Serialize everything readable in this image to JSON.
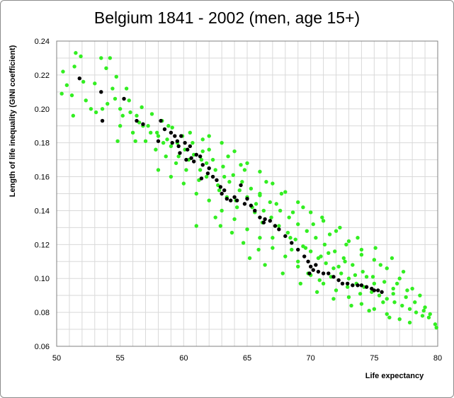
{
  "chart_data": {
    "type": "scatter",
    "title": "Belgium 1841 - 2002 (men, age 15+)",
    "xlabel": "Life expectancy",
    "ylabel": "Length of life  inequality (GINI coefficient)",
    "xlim": [
      50,
      80
    ],
    "ylim": [
      0.06,
      0.24
    ],
    "x_ticks": [
      "50",
      "55",
      "60",
      "65",
      "70",
      "75",
      "80"
    ],
    "y_ticks": [
      "0.06",
      "0.08",
      "0.10",
      "0.12",
      "0.14",
      "0.16",
      "0.18",
      "0.20",
      "0.22",
      "0.24"
    ],
    "grid": true,
    "legend": "none",
    "colors": {
      "simulated": "#33ee22",
      "observed": "#000000"
    },
    "series": [
      {
        "color": "#33ee22",
        "points": [
          [
            50.4,
            0.209
          ],
          [
            50.5,
            0.222
          ],
          [
            50.8,
            0.214
          ],
          [
            51.4,
            0.225
          ],
          [
            51.5,
            0.233
          ],
          [
            51.9,
            0.231
          ],
          [
            52.3,
            0.205
          ],
          [
            53.5,
            0.23
          ],
          [
            54.2,
            0.23
          ],
          [
            53.9,
            0.224
          ],
          [
            54.4,
            0.212
          ],
          [
            55.5,
            0.212
          ],
          [
            51.2,
            0.208
          ],
          [
            51.3,
            0.196
          ],
          [
            52.7,
            0.2
          ],
          [
            53.1,
            0.198
          ],
          [
            53.6,
            0.2
          ],
          [
            54.0,
            0.203
          ],
          [
            54.6,
            0.206
          ],
          [
            55.0,
            0.2
          ],
          [
            55.2,
            0.196
          ],
          [
            55.8,
            0.198
          ],
          [
            56.3,
            0.196
          ],
          [
            56.8,
            0.19
          ],
          [
            57.4,
            0.186
          ],
          [
            58.0,
            0.184
          ],
          [
            58.4,
            0.18
          ],
          [
            59.0,
            0.178
          ],
          [
            59.5,
            0.18
          ],
          [
            60.1,
            0.176
          ],
          [
            60.8,
            0.173
          ],
          [
            61.4,
            0.17
          ],
          [
            61.8,
            0.168
          ],
          [
            62.5,
            0.164
          ],
          [
            63.2,
            0.16
          ],
          [
            63.6,
            0.157
          ],
          [
            64.4,
            0.152
          ],
          [
            65.0,
            0.148
          ],
          [
            65.7,
            0.144
          ],
          [
            66.3,
            0.14
          ],
          [
            66.9,
            0.136
          ],
          [
            67.5,
            0.131
          ],
          [
            68.2,
            0.127
          ],
          [
            68.8,
            0.123
          ],
          [
            69.4,
            0.119
          ],
          [
            70.0,
            0.116
          ],
          [
            70.6,
            0.112
          ],
          [
            71.2,
            0.109
          ],
          [
            71.8,
            0.106
          ],
          [
            72.4,
            0.103
          ],
          [
            73.0,
            0.1
          ],
          [
            73.6,
            0.097
          ],
          [
            74.2,
            0.095
          ],
          [
            74.8,
            0.092
          ],
          [
            75.4,
            0.09
          ],
          [
            76.0,
            0.088
          ],
          [
            76.6,
            0.086
          ],
          [
            77.2,
            0.084
          ],
          [
            77.8,
            0.082
          ],
          [
            78.3,
            0.08
          ],
          [
            78.8,
            0.078
          ],
          [
            79.3,
            0.077
          ],
          [
            79.8,
            0.073
          ],
          [
            79.9,
            0.071
          ],
          [
            78.9,
            0.081
          ],
          [
            77.5,
            0.089
          ],
          [
            76.5,
            0.094
          ],
          [
            75.8,
            0.098
          ],
          [
            74.9,
            0.101
          ],
          [
            74.1,
            0.104
          ],
          [
            73.3,
            0.108
          ],
          [
            72.6,
            0.112
          ],
          [
            71.9,
            0.116
          ],
          [
            71.1,
            0.12
          ],
          [
            70.4,
            0.124
          ],
          [
            69.7,
            0.128
          ],
          [
            69.0,
            0.132
          ],
          [
            68.3,
            0.136
          ],
          [
            67.6,
            0.14
          ],
          [
            66.8,
            0.145
          ],
          [
            66.0,
            0.149
          ],
          [
            65.3,
            0.153
          ],
          [
            64.6,
            0.157
          ],
          [
            63.9,
            0.161
          ],
          [
            63.1,
            0.166
          ],
          [
            62.3,
            0.17
          ],
          [
            61.5,
            0.175
          ],
          [
            60.7,
            0.18
          ],
          [
            59.9,
            0.184
          ],
          [
            59.1,
            0.189
          ],
          [
            58.3,
            0.193
          ],
          [
            57.5,
            0.197
          ],
          [
            56.7,
            0.201
          ],
          [
            62.0,
            0.184
          ],
          [
            63.0,
            0.18
          ],
          [
            64.0,
            0.175
          ],
          [
            65.0,
            0.168
          ],
          [
            66.0,
            0.163
          ],
          [
            67.0,
            0.156
          ],
          [
            68.0,
            0.151
          ],
          [
            69.0,
            0.145
          ],
          [
            70.0,
            0.139
          ],
          [
            71.0,
            0.134
          ],
          [
            72.0,
            0.128
          ],
          [
            73.0,
            0.122
          ],
          [
            74.0,
            0.117
          ],
          [
            75.0,
            0.111
          ],
          [
            76.0,
            0.106
          ],
          [
            58.0,
            0.164
          ],
          [
            59.0,
            0.16
          ],
          [
            60.0,
            0.156
          ],
          [
            61.0,
            0.15
          ],
          [
            62.0,
            0.146
          ],
          [
            63.0,
            0.14
          ],
          [
            64.0,
            0.135
          ],
          [
            65.0,
            0.129
          ],
          [
            66.0,
            0.124
          ],
          [
            67.0,
            0.118
          ],
          [
            68.0,
            0.113
          ],
          [
            69.0,
            0.107
          ],
          [
            70.0,
            0.102
          ],
          [
            71.0,
            0.097
          ],
          [
            72.0,
            0.093
          ],
          [
            73.0,
            0.089
          ],
          [
            74.0,
            0.085
          ],
          [
            75.0,
            0.082
          ],
          [
            76.0,
            0.079
          ],
          [
            77.0,
            0.076
          ],
          [
            61.0,
            0.131
          ],
          [
            62.5,
            0.136
          ],
          [
            65.2,
            0.112
          ],
          [
            66.4,
            0.108
          ],
          [
            67.8,
            0.103
          ],
          [
            69.2,
            0.097
          ],
          [
            70.5,
            0.092
          ],
          [
            71.8,
            0.088
          ],
          [
            73.2,
            0.084
          ],
          [
            74.6,
            0.081
          ],
          [
            76.2,
            0.077
          ],
          [
            77.8,
            0.074
          ],
          [
            62.0,
            0.176
          ],
          [
            64.5,
            0.167
          ],
          [
            66.0,
            0.15
          ],
          [
            67.3,
            0.144
          ],
          [
            68.6,
            0.139
          ],
          [
            70.2,
            0.132
          ],
          [
            71.5,
            0.126
          ],
          [
            72.8,
            0.12
          ],
          [
            74.0,
            0.114
          ],
          [
            75.5,
            0.108
          ],
          [
            77.0,
            0.1
          ],
          [
            78.0,
            0.094
          ],
          [
            56.0,
            0.186
          ],
          [
            57.0,
            0.181
          ],
          [
            57.8,
            0.176
          ],
          [
            58.6,
            0.172
          ],
          [
            59.4,
            0.168
          ],
          [
            60.2,
            0.164
          ],
          [
            61.2,
            0.158
          ],
          [
            62.8,
            0.152
          ],
          [
            64.1,
            0.146
          ],
          [
            65.6,
            0.139
          ],
          [
            67.2,
            0.131
          ],
          [
            68.4,
            0.124
          ],
          [
            69.6,
            0.118
          ],
          [
            70.8,
            0.113
          ],
          [
            72.2,
            0.107
          ],
          [
            73.5,
            0.102
          ],
          [
            75.0,
            0.097
          ],
          [
            76.5,
            0.091
          ],
          [
            78.2,
            0.086
          ],
          [
            79.0,
            0.083
          ],
          [
            55.0,
            0.19
          ],
          [
            54.8,
            0.181
          ],
          [
            56.5,
            0.192
          ],
          [
            58.8,
            0.19
          ],
          [
            60.5,
            0.186
          ],
          [
            61.5,
            0.182
          ],
          [
            63.5,
            0.172
          ],
          [
            64.8,
            0.164
          ],
          [
            66.5,
            0.157
          ],
          [
            67.7,
            0.15
          ],
          [
            69.4,
            0.142
          ],
          [
            70.9,
            0.136
          ],
          [
            72.3,
            0.13
          ],
          [
            73.7,
            0.124
          ],
          [
            75.1,
            0.118
          ],
          [
            76.4,
            0.112
          ],
          [
            77.3,
            0.104
          ],
          [
            78.6,
            0.09
          ],
          [
            69.0,
            0.11
          ],
          [
            69.8,
            0.103
          ],
          [
            70.7,
            0.099
          ],
          [
            72.9,
            0.095
          ],
          [
            71.6,
            0.101
          ],
          [
            68.5,
            0.117
          ],
          [
            67.0,
            0.124
          ],
          [
            66.2,
            0.133
          ],
          [
            65.4,
            0.142
          ],
          [
            64.2,
            0.142
          ],
          [
            63.4,
            0.148
          ],
          [
            62.7,
            0.155
          ],
          [
            61.8,
            0.16
          ],
          [
            61.3,
            0.164
          ],
          [
            60.4,
            0.17
          ],
          [
            59.6,
            0.172
          ],
          [
            58.7,
            0.182
          ],
          [
            57.9,
            0.186
          ],
          [
            57.2,
            0.19
          ],
          [
            56.2,
            0.181
          ],
          [
            55.7,
            0.205
          ],
          [
            53.0,
            0.215
          ],
          [
            52.1,
            0.216
          ],
          [
            54.7,
            0.219
          ],
          [
            71.4,
            0.115
          ],
          [
            72.7,
            0.11
          ],
          [
            74.4,
            0.101
          ],
          [
            76.8,
            0.097
          ],
          [
            77.6,
            0.093
          ],
          [
            79.4,
            0.079
          ],
          [
            73.9,
            0.091
          ],
          [
            75.7,
            0.086
          ],
          [
            62.9,
            0.131
          ],
          [
            63.8,
            0.127
          ],
          [
            64.7,
            0.121
          ],
          [
            65.9,
            0.117
          ]
        ]
      },
      {
        "color": "#000000",
        "points": [
          [
            51.8,
            0.218
          ],
          [
            53.5,
            0.21
          ],
          [
            53.6,
            0.193
          ],
          [
            55.3,
            0.206
          ],
          [
            56.3,
            0.193
          ],
          [
            56.8,
            0.191
          ],
          [
            58.0,
            0.181
          ],
          [
            58.2,
            0.193
          ],
          [
            58.5,
            0.188
          ],
          [
            59.0,
            0.186
          ],
          [
            59.3,
            0.184
          ],
          [
            59.5,
            0.181
          ],
          [
            59.1,
            0.18
          ],
          [
            59.6,
            0.178
          ],
          [
            59.8,
            0.184
          ],
          [
            60.1,
            0.18
          ],
          [
            60.3,
            0.176
          ],
          [
            59.7,
            0.174
          ],
          [
            60.5,
            0.178
          ],
          [
            60.6,
            0.171
          ],
          [
            60.2,
            0.17
          ],
          [
            61.0,
            0.173
          ],
          [
            61.3,
            0.172
          ],
          [
            60.8,
            0.169
          ],
          [
            61.5,
            0.167
          ],
          [
            62.0,
            0.165
          ],
          [
            61.9,
            0.162
          ],
          [
            62.3,
            0.16
          ],
          [
            61.4,
            0.159
          ],
          [
            62.6,
            0.158
          ],
          [
            62.9,
            0.154
          ],
          [
            63.0,
            0.15
          ],
          [
            63.4,
            0.147
          ],
          [
            63.7,
            0.146
          ],
          [
            64.2,
            0.146
          ],
          [
            64.5,
            0.155
          ],
          [
            64.8,
            0.144
          ],
          [
            65.0,
            0.147
          ],
          [
            65.3,
            0.143
          ],
          [
            65.6,
            0.14
          ],
          [
            66.0,
            0.136
          ],
          [
            66.4,
            0.135
          ],
          [
            66.8,
            0.134
          ],
          [
            67.2,
            0.131
          ],
          [
            67.5,
            0.129
          ],
          [
            68.0,
            0.125
          ],
          [
            68.5,
            0.121
          ],
          [
            69.0,
            0.117
          ],
          [
            69.5,
            0.113
          ],
          [
            69.8,
            0.11
          ],
          [
            70.0,
            0.107
          ],
          [
            70.2,
            0.105
          ],
          [
            70.4,
            0.108
          ],
          [
            69.9,
            0.103
          ],
          [
            70.6,
            0.104
          ],
          [
            71.0,
            0.103
          ],
          [
            71.4,
            0.103
          ],
          [
            71.8,
            0.101
          ],
          [
            72.2,
            0.099
          ],
          [
            72.5,
            0.097
          ],
          [
            72.9,
            0.097
          ],
          [
            73.3,
            0.096
          ],
          [
            73.7,
            0.096
          ],
          [
            74.0,
            0.096
          ],
          [
            74.4,
            0.095
          ],
          [
            74.8,
            0.094
          ],
          [
            75.0,
            0.093
          ],
          [
            75.3,
            0.093
          ],
          [
            75.6,
            0.092
          ],
          [
            66.3,
            0.133
          ],
          [
            64.0,
            0.148
          ],
          [
            63.2,
            0.152
          ]
        ]
      }
    ]
  }
}
